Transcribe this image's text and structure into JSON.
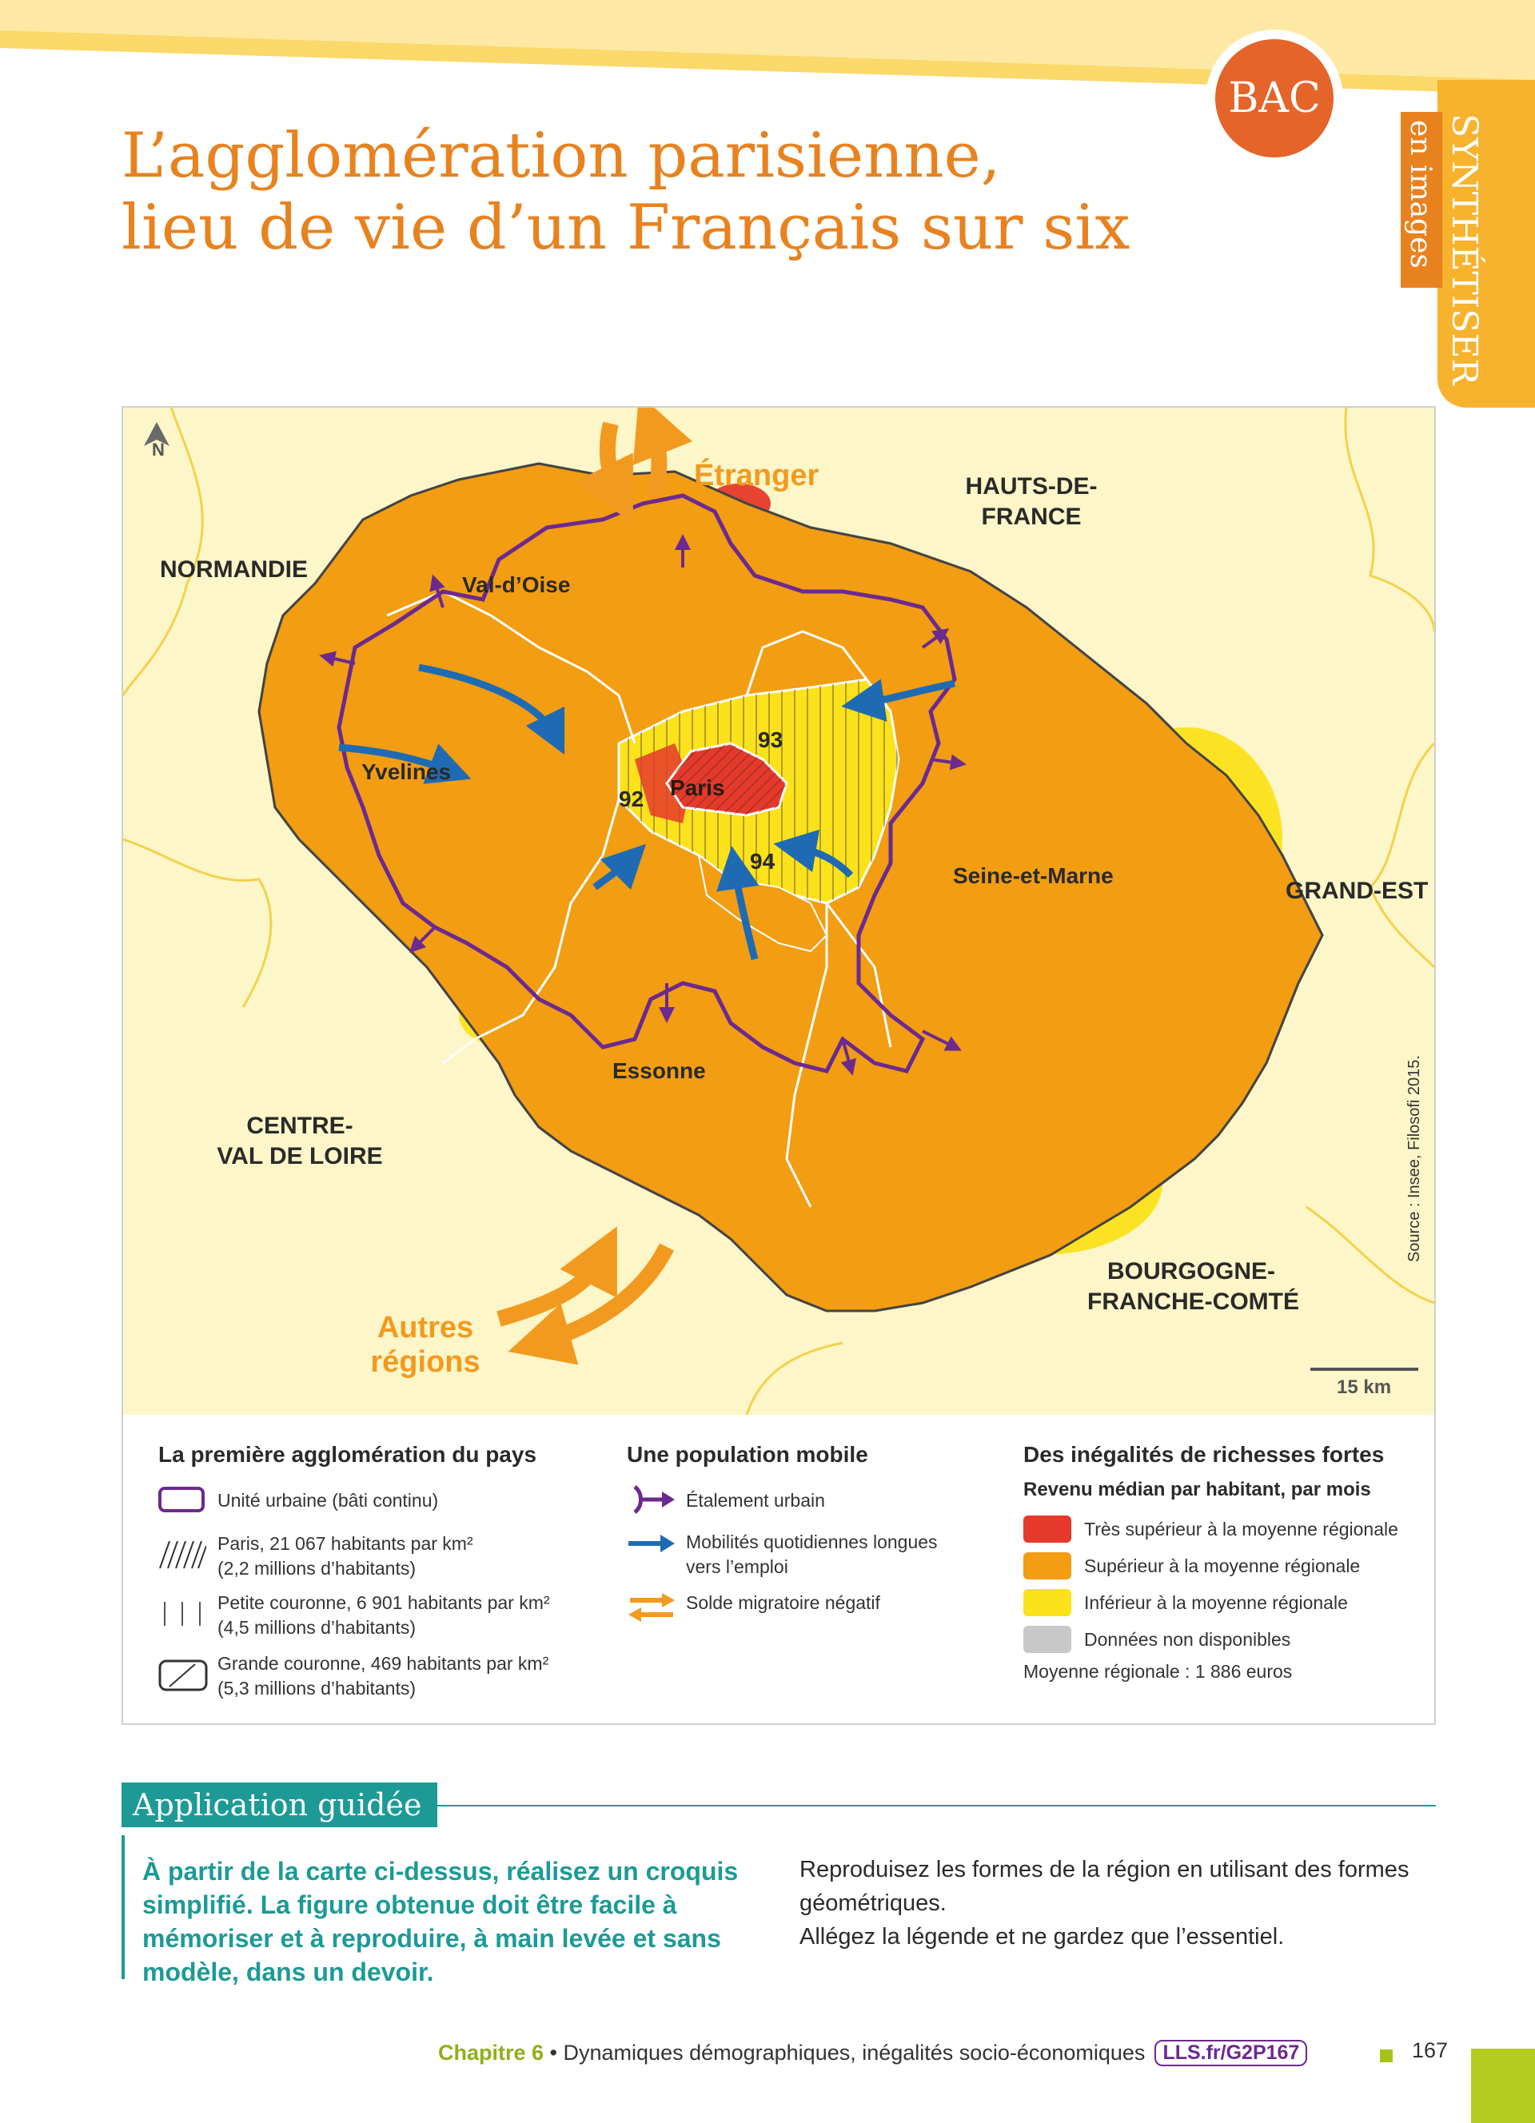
{
  "header": {
    "badge": "BAC",
    "side_tab_main": "SYNTHÉTISER",
    "side_tab_sub": "en images"
  },
  "title": {
    "line1": "L’agglomération parisienne,",
    "line2": "lieu de vie d’un Français sur six"
  },
  "map": {
    "north_label": "N",
    "flows": {
      "abroad": "Étranger",
      "other_regions_1": "Autres",
      "other_regions_2": "régions"
    },
    "regions": {
      "normandie": "NORMANDIE",
      "hdf_1": "HAUTS-DE-",
      "hdf_2": "FRANCE",
      "grand_est": "GRAND-EST",
      "cvl_1": "CENTRE-",
      "cvl_2": "VAL DE LOIRE",
      "bfc_1": "BOURGOGNE-",
      "bfc_2": "FRANCHE-COMTÉ"
    },
    "departments": {
      "val_doise": "Val-d’Oise",
      "yvelines": "Yvelines",
      "paris": "Paris",
      "d92": "92",
      "d93": "93",
      "d94": "94",
      "seine_et_marne": "Seine-et-Marne",
      "essonne": "Essonne"
    },
    "scale": "15 km",
    "source": "Source : Insee, Filosofi 2015.",
    "colors": {
      "very_high": "#e5392b",
      "high": "#f29d12",
      "low": "#fbe21a",
      "na": "#c8c8c8",
      "urban_unit": "#6b2a8f",
      "commute_arrow": "#1f6bb3",
      "migration_arrow": "#f29a1f",
      "background": "#fdf6c8"
    }
  },
  "legend": {
    "col1": {
      "title": "La première agglomération du pays",
      "items": [
        {
          "l1": "Unité urbaine (bâti continu)",
          "l2": ""
        },
        {
          "l1": "Paris, 21 067 habitants par km²",
          "l2": "(2,2 millions d’habitants)"
        },
        {
          "l1": "Petite couronne, 6 901 habitants par km²",
          "l2": "(4,5 millions d’habitants)"
        },
        {
          "l1": "Grande couronne, 469 habitants par km²",
          "l2": "(5,3 millions d’habitants)"
        }
      ]
    },
    "col2": {
      "title": "Une population mobile",
      "items": [
        {
          "l1": "Étalement urbain",
          "l2": ""
        },
        {
          "l1": "Mobilités quotidiennes longues",
          "l2": "vers l’emploi"
        },
        {
          "l1": "Solde migratoire négatif",
          "l2": ""
        }
      ]
    },
    "col3": {
      "title": "Des inégalités de richesses fortes",
      "subtitle": "Revenu médian par habitant, par mois",
      "items": [
        "Très supérieur à la moyenne régionale",
        "Supérieur à la moyenne régionale",
        "Inférieur à la moyenne régionale",
        "Données non disponibles"
      ],
      "note": "Moyenne régionale : 1 886 euros"
    }
  },
  "application": {
    "title": "Application guidée",
    "left": "À partir de la carte ci-dessus, réalisez un croquis simplifié. La figure obtenue doit être facile à mémoriser et à reproduire, à main levée et sans modèle, dans un devoir.",
    "right_1": "Reproduisez les formes de la région en utilisant des formes géométriques.",
    "right_2": "Allégez la légende et ne gardez que l’essentiel."
  },
  "footer": {
    "chapter": "Chapitre 6",
    "bullet": " • ",
    "topic": "Dynamiques démographiques, inégalités socio-économiques",
    "link": "LLS.fr/G2P167",
    "page": "167"
  }
}
